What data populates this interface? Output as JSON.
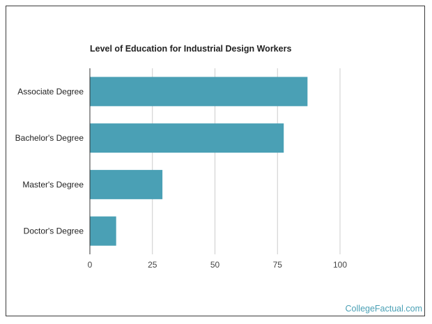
{
  "chart_data": {
    "type": "bar",
    "orientation": "horizontal",
    "title": "Level of Education for Industrial Design Workers",
    "xlabel": "",
    "ylabel": "",
    "categories": [
      "Associate Degree",
      "Bachelor's Degree",
      "Master's Degree",
      "Doctor's Degree"
    ],
    "values": [
      87,
      77.5,
      29,
      10.5
    ],
    "xlim": [
      0,
      100
    ],
    "xticks": [
      0,
      25,
      50,
      75,
      100
    ],
    "grid": true,
    "bar_color": "#4aa0b5",
    "grid_color": "#cccccc"
  },
  "watermark": "CollegeFactual.com"
}
